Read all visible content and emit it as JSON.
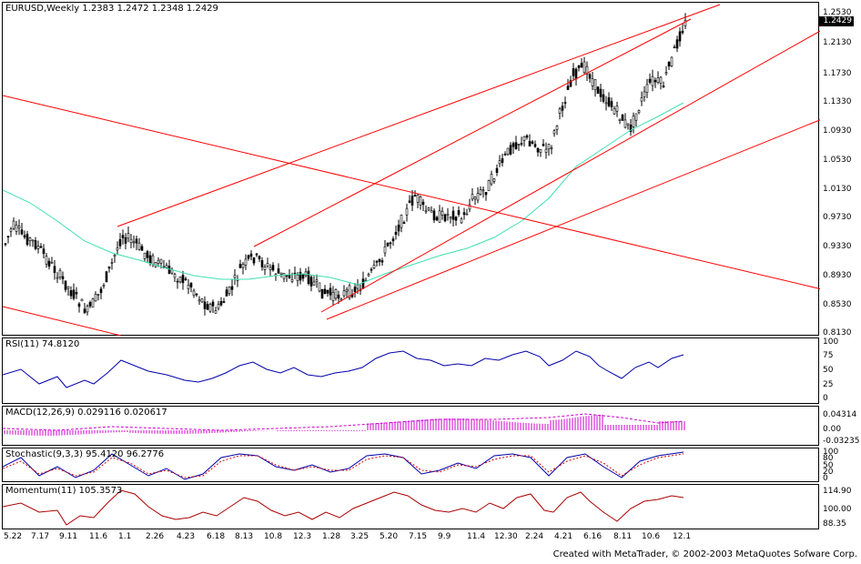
{
  "main": {
    "title": "EURUSD,Weekly  1.2383 1.2472 1.2348 1.2429",
    "current_price": "1.2429",
    "price_labels": [
      "1.2530",
      "1.2130",
      "1.1730",
      "1.1330",
      "1.0930",
      "1.0530",
      "1.0130",
      "0.9730",
      "0.9330",
      "0.8930",
      "0.8530",
      "0.8130"
    ]
  },
  "rsi": {
    "label": "RSI(11) 74.8120",
    "levels": [
      "100",
      "75",
      "50",
      "25",
      "0"
    ]
  },
  "macd": {
    "label": "MACD(12,26,9) 0.029116 0.020617",
    "levels": [
      "0.04314",
      "0.00",
      "-0.03235"
    ]
  },
  "stochastic": {
    "label": "Stochastic(9,3,3) 95.4120 96.2776",
    "levels": [
      "100",
      "80",
      "50",
      "20",
      "0"
    ]
  },
  "momentum": {
    "label": "Momentum(11) 105.3573",
    "levels": [
      "114.90",
      "100.00",
      "88.35"
    ]
  },
  "dates": [
    "5.22",
    "7.17",
    "9.11",
    "11.6",
    "1.1",
    "2.26",
    "4.23",
    "6.18",
    "8.13",
    "10.8",
    "12.3",
    "1.28",
    "3.25",
    "5.20",
    "7.15",
    "9.9",
    "11.4",
    "12.30",
    "2.24",
    "4.21",
    "6.16",
    "8.11",
    "10.6",
    "12.1"
  ],
  "footer": "Created with MetaTrader, © 2002-2003 MetaQuotes Sofware Corp.",
  "colors": {
    "candle": "#000000",
    "trendline": "#ff0000",
    "ma": "#40e0b0",
    "rsi": "#0000aa",
    "macd": "#cc00cc",
    "stoch_main": "#0000aa",
    "stoch_signal": "#cc0000",
    "momentum": "#aa0000"
  }
}
